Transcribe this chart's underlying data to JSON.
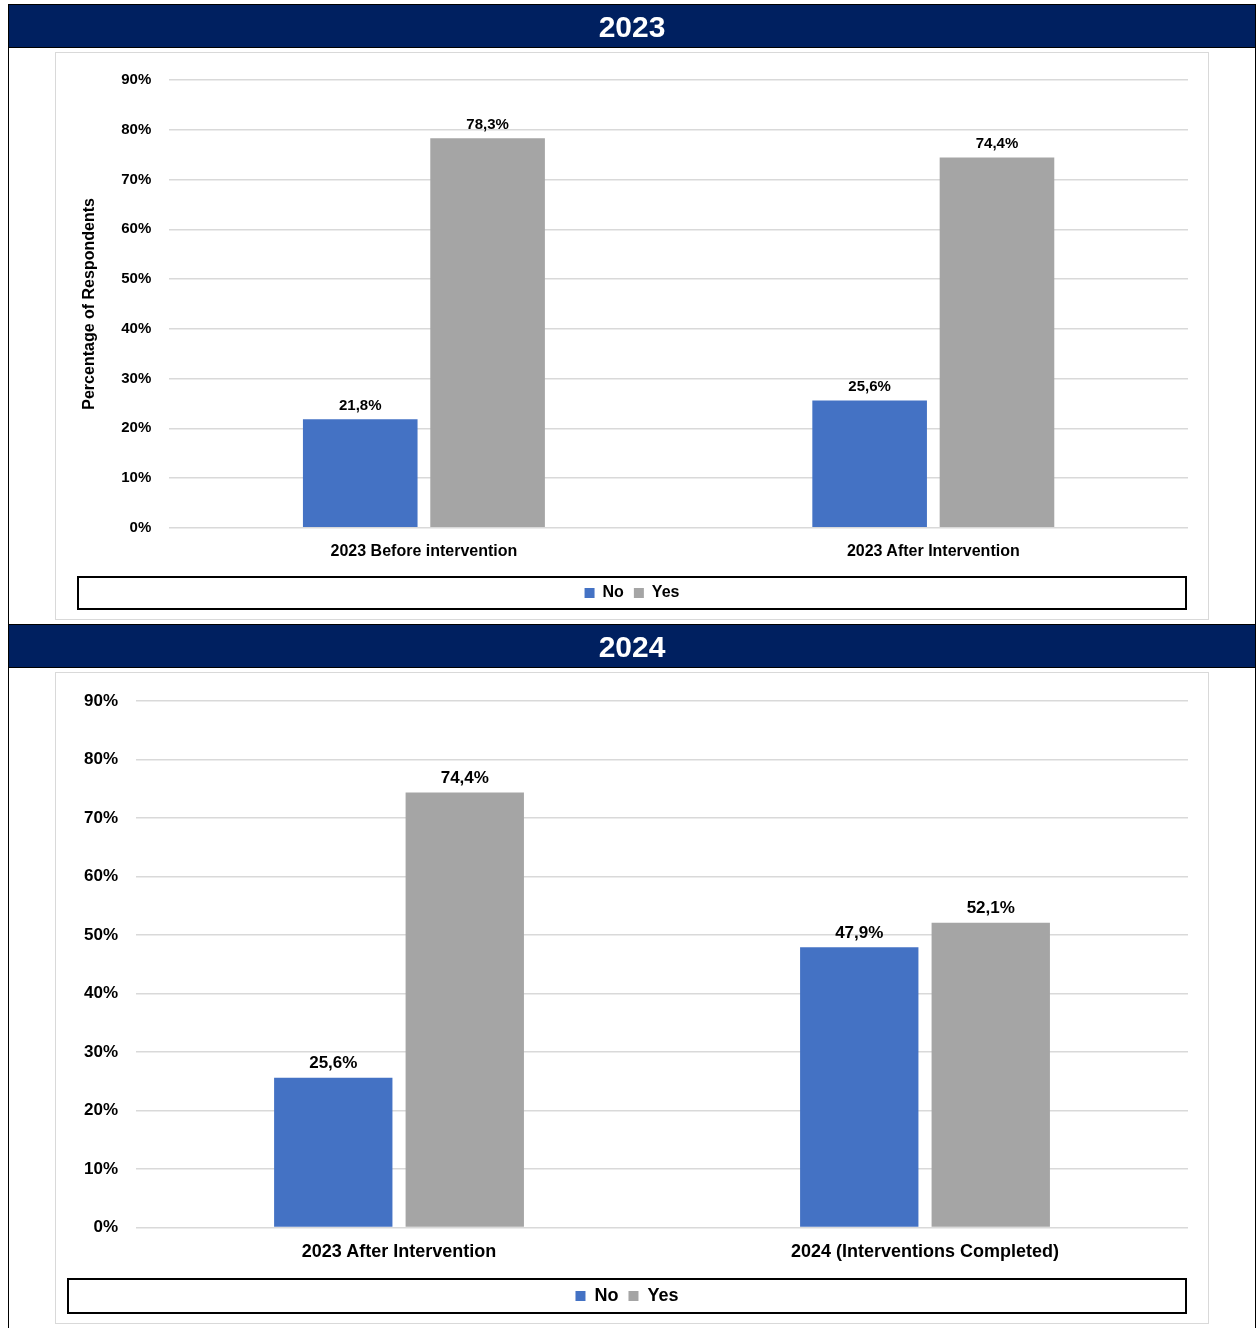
{
  "chart_data": [
    {
      "type": "bar",
      "title": "2023",
      "ylabel": "Percentage of Respondents",
      "categories": [
        "2023 Before intervention",
        "2023 After Intervention"
      ],
      "series": [
        {
          "name": "No",
          "color": "#4472c4",
          "values": [
            21.8,
            25.6
          ],
          "value_labels": [
            "21,8%",
            "25,6%"
          ]
        },
        {
          "name": "Yes",
          "color": "#a5a5a5",
          "values": [
            78.3,
            74.4
          ],
          "value_labels": [
            "78,3%",
            "74,4%"
          ]
        }
      ],
      "ylim": [
        0,
        90
      ],
      "yticks": [
        {
          "value": 0,
          "label": "0%"
        },
        {
          "value": 10,
          "label": "10%"
        },
        {
          "value": 20,
          "label": "20%"
        },
        {
          "value": 30,
          "label": "30%"
        },
        {
          "value": 40,
          "label": "40%"
        },
        {
          "value": 50,
          "label": "50%"
        },
        {
          "value": 60,
          "label": "60%"
        },
        {
          "value": 70,
          "label": "70%"
        },
        {
          "value": 80,
          "label": "80%"
        },
        {
          "value": 90,
          "label": "90%"
        }
      ],
      "grid": "y",
      "legend": "bottom"
    },
    {
      "type": "bar",
      "title": "2024",
      "categories": [
        "2023 After Intervention",
        "2024 (Interventions Completed)"
      ],
      "series": [
        {
          "name": "No",
          "color": "#4472c4",
          "values": [
            25.6,
            47.9
          ],
          "value_labels": [
            "25,6%",
            "47,9%"
          ]
        },
        {
          "name": "Yes",
          "color": "#a5a5a5",
          "values": [
            74.4,
            52.1
          ],
          "value_labels": [
            "74,4%",
            "52,1%"
          ]
        }
      ],
      "ylim": [
        0,
        90
      ],
      "yticks": [
        {
          "value": 0,
          "label": "0%"
        },
        {
          "value": 10,
          "label": "10%"
        },
        {
          "value": 20,
          "label": "20%"
        },
        {
          "value": 30,
          "label": "30%"
        },
        {
          "value": 40,
          "label": "40%"
        },
        {
          "value": 50,
          "label": "50%"
        },
        {
          "value": 60,
          "label": "60%"
        },
        {
          "value": 70,
          "label": "70%"
        },
        {
          "value": 80,
          "label": "80%"
        },
        {
          "value": 90,
          "label": "90%"
        }
      ],
      "grid": "y",
      "legend": "bottom"
    }
  ]
}
